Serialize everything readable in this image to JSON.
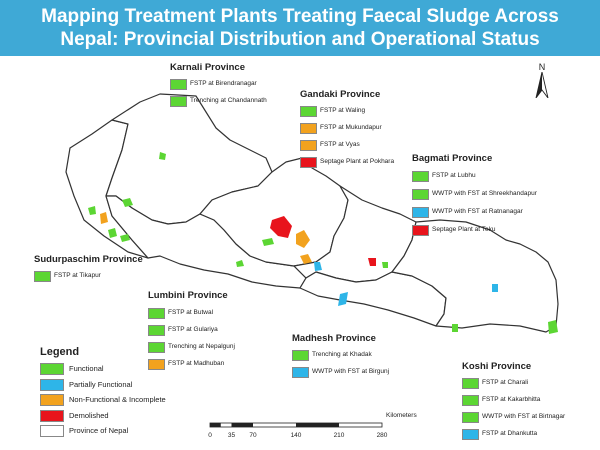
{
  "title": {
    "line1": "Mapping Treatment Plants Treating Faecal Sludge Across",
    "line2": "Nepal: Provincial Distribution and Operational Status"
  },
  "colors": {
    "functional": "#5cd633",
    "partially_functional": "#2eb5e8",
    "non_functional": "#f2a21e",
    "demolished": "#e8141c",
    "province": "#ffffff"
  },
  "provinces": {
    "karnali": {
      "name": "Karnali Province",
      "plants": [
        {
          "label": "FSTP at Birendranagar",
          "status": "functional"
        },
        {
          "label": "Trenching at Chandannath",
          "status": "functional"
        }
      ]
    },
    "gandaki": {
      "name": "Gandaki Province",
      "plants": [
        {
          "label": "FSTP at Waling",
          "status": "functional"
        },
        {
          "label": "FSTP at Mukundapur",
          "status": "non_functional"
        },
        {
          "label": "FSTP at Vyas",
          "status": "non_functional"
        },
        {
          "label": "Septage Plant at Pokhara",
          "status": "demolished"
        }
      ]
    },
    "bagmati": {
      "name": "Bagmati Province",
      "plants": [
        {
          "label": "FSTP at Lubhu",
          "status": "functional"
        },
        {
          "label": "WWTP with FST at Shreekhandapur",
          "status": "functional"
        },
        {
          "label": "WWTP with FST at Ratnanagar",
          "status": "partially_functional"
        },
        {
          "label": "Septage Plant at Teku",
          "status": "demolished"
        }
      ]
    },
    "sudurpaschim": {
      "name": "Sudurpaschim Province",
      "plants": [
        {
          "label": "FSTP at Tikapur",
          "status": "functional"
        }
      ]
    },
    "lumbini": {
      "name": "Lumbini Province",
      "plants": [
        {
          "label": "FSTP at Butwal",
          "status": "functional"
        },
        {
          "label": "FSTP at Gulariya",
          "status": "functional"
        },
        {
          "label": "Trenching at Nepalgunj",
          "status": "functional"
        },
        {
          "label": "FSTP at Madhuban",
          "status": "non_functional"
        }
      ]
    },
    "madhesh": {
      "name": "Madhesh Province",
      "plants": [
        {
          "label": "Trenching at Khadak",
          "status": "functional"
        },
        {
          "label": "WWTP with FST at Birgunj",
          "status": "partially_functional"
        }
      ]
    },
    "koshi": {
      "name": "Koshi Province",
      "plants": [
        {
          "label": "FSTP at Charali",
          "status": "functional"
        },
        {
          "label": "FSTP at Kakarbhitta",
          "status": "functional"
        },
        {
          "label": "WWTP with FST at Birtnagar",
          "status": "functional"
        },
        {
          "label": "FSTP at Dhankutta",
          "status": "partially_functional"
        }
      ]
    }
  },
  "legend": {
    "title": "Legend",
    "items": [
      {
        "label": "Functional",
        "status": "functional"
      },
      {
        "label": "Partially Functional",
        "status": "partially_functional"
      },
      {
        "label": "Non-Functional & Incomplete",
        "status": "non_functional"
      },
      {
        "label": "Demolished",
        "status": "demolished"
      },
      {
        "label": "Province of Nepal",
        "status": "province"
      }
    ]
  },
  "scale_bar": {
    "units": "Kilometers",
    "ticks": [
      "0",
      "35",
      "70",
      "140",
      "210",
      "280"
    ]
  },
  "north_arrow": {
    "label": "N",
    "icon": "north-arrow-icon"
  }
}
